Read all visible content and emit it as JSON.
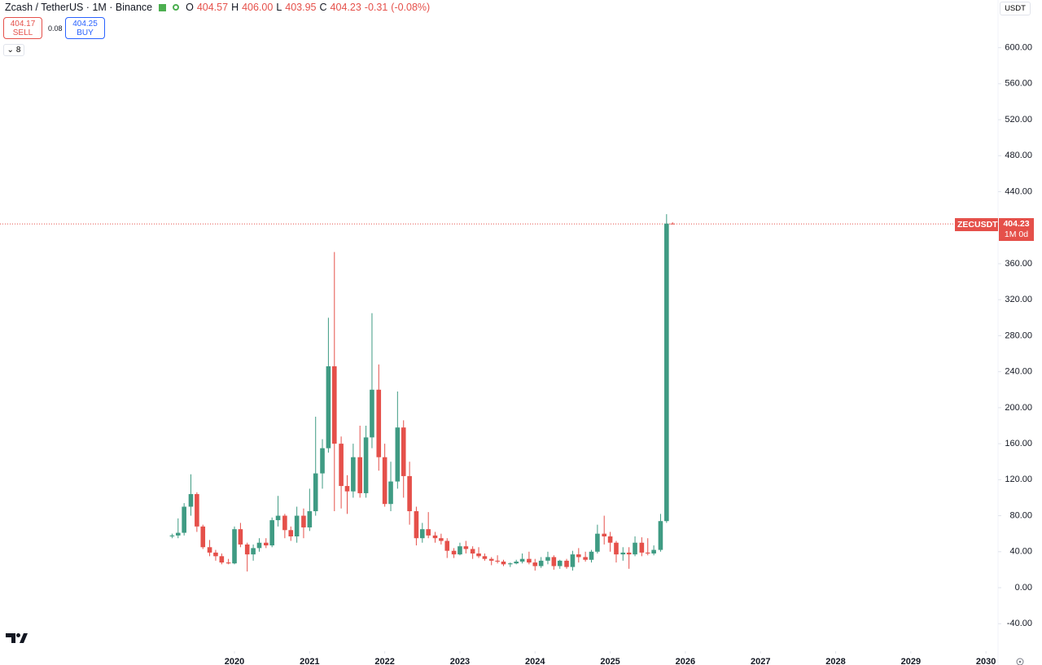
{
  "header": {
    "symbol": "Zcash / TetherUS · 1M · Binance",
    "o_label": "O",
    "open": "404.57",
    "h_label": "H",
    "high": "406.00",
    "l_label": "L",
    "low": "403.95",
    "c_label": "C",
    "close": "404.23",
    "change": "-0.31",
    "change_pct": "(-0.08%)"
  },
  "trade": {
    "sell_price": "404.17",
    "sell": "SELL",
    "spread": "0.08",
    "buy_price": "404.25",
    "buy": "BUY",
    "indicators": "8",
    "currency": "USDT"
  },
  "chart_data": {
    "type": "candlestick",
    "x": [
      2019.17,
      2019.25,
      2019.33,
      2019.42,
      2019.5,
      2019.58,
      2019.67,
      2019.75,
      2019.83,
      2019.92,
      2020,
      2020.08,
      2020.17,
      2020.25,
      2020.33,
      2020.42,
      2020.5,
      2020.58,
      2020.67,
      2020.75,
      2020.83,
      2020.92,
      2021,
      2021.08,
      2021.17,
      2021.25,
      2021.33,
      2021.42,
      2021.5,
      2021.58,
      2021.67,
      2021.75,
      2021.83,
      2021.92,
      2022,
      2022.08,
      2022.17,
      2022.25,
      2022.33,
      2022.42,
      2022.5,
      2022.58,
      2022.67,
      2022.75,
      2022.83,
      2022.92,
      2023,
      2023.08,
      2023.17,
      2023.25,
      2023.33,
      2023.42,
      2023.5,
      2023.58,
      2023.67,
      2023.75,
      2023.83,
      2023.92,
      2024,
      2024.08,
      2024.17,
      2024.25,
      2024.33,
      2024.42,
      2024.5,
      2024.58,
      2024.67,
      2024.75,
      2024.83,
      2024.92,
      2025,
      2025.08,
      2025.17,
      2025.25,
      2025.33,
      2025.42,
      2025.5,
      2025.58,
      2025.67,
      2025.75,
      2025.83
    ],
    "open": [
      57,
      58,
      61,
      90,
      104,
      68,
      45,
      39,
      35,
      28,
      27,
      65,
      48,
      37,
      44,
      50,
      47,
      75,
      80,
      64,
      57,
      80,
      67,
      85,
      127,
      155,
      246,
      160,
      113,
      107,
      145,
      105,
      167,
      220,
      145,
      93,
      118,
      178,
      124,
      85,
      55,
      65,
      58,
      55,
      52,
      41,
      37,
      46,
      43,
      38,
      35,
      32,
      30,
      29,
      26,
      27,
      29,
      32,
      28,
      24,
      30,
      34,
      24,
      30,
      23,
      37,
      34,
      31,
      40,
      60,
      57,
      50,
      37,
      39,
      37,
      50,
      39,
      38,
      42,
      74,
      404.57
    ],
    "high": [
      60,
      77,
      94,
      126,
      106,
      70,
      53,
      42,
      38,
      32,
      68,
      72,
      50,
      48,
      55,
      55,
      78,
      102,
      82,
      68,
      90,
      88,
      110,
      190,
      165,
      300,
      373,
      168,
      125,
      160,
      180,
      180,
      305,
      248,
      160,
      140,
      218,
      186,
      140,
      90,
      72,
      84,
      62,
      60,
      55,
      44,
      50,
      52,
      46,
      45,
      38,
      34,
      36,
      31,
      28,
      31,
      38,
      40,
      32,
      34,
      40,
      36,
      31,
      32,
      41,
      44,
      40,
      42,
      70,
      80,
      62,
      52,
      45,
      45,
      57,
      56,
      55,
      47,
      82,
      415,
      406
    ],
    "low": [
      55,
      55,
      58,
      80,
      62,
      43,
      35,
      30,
      26,
      26,
      26,
      45,
      18,
      30,
      40,
      44,
      45,
      68,
      55,
      52,
      50,
      55,
      63,
      80,
      110,
      150,
      85,
      88,
      82,
      100,
      100,
      100,
      155,
      130,
      90,
      85,
      110,
      100,
      70,
      47,
      50,
      55,
      50,
      48,
      33,
      33,
      36,
      38,
      32,
      33,
      30,
      25,
      27,
      24,
      23,
      26,
      27,
      26,
      19,
      22,
      26,
      20,
      21,
      21,
      19,
      28,
      29,
      28,
      38,
      48,
      40,
      28,
      30,
      21,
      35,
      35,
      36,
      36,
      40,
      72,
      403.95
    ],
    "close": [
      58,
      61,
      90,
      104,
      68,
      45,
      39,
      35,
      28,
      27,
      65,
      48,
      37,
      44,
      50,
      47,
      75,
      80,
      64,
      57,
      80,
      67,
      85,
      127,
      155,
      246,
      160,
      113,
      107,
      145,
      105,
      167,
      220,
      145,
      93,
      118,
      178,
      124,
      85,
      55,
      65,
      58,
      55,
      52,
      41,
      37,
      46,
      43,
      38,
      35,
      32,
      30,
      29,
      26,
      27,
      29,
      32,
      28,
      24,
      30,
      34,
      24,
      30,
      23,
      37,
      34,
      31,
      40,
      60,
      57,
      50,
      37,
      39,
      37,
      50,
      39,
      38,
      42,
      74,
      404.54,
      404.23
    ],
    "up_color": "#3f9b83",
    "down_color": "#e5504a",
    "xlim": [
      2016.88,
      2030.15
    ],
    "xticks": [
      2020,
      2021,
      2022,
      2023,
      2024,
      2025,
      2026,
      2027,
      2028,
      2029,
      2030
    ],
    "ylim": [
      -66,
      653
    ],
    "yticks": [
      {
        "value": -40,
        "label": "-40.00"
      },
      {
        "value": 0,
        "label": "0.00"
      },
      {
        "value": 40,
        "label": "40.00"
      },
      {
        "value": 80,
        "label": "80.00"
      },
      {
        "value": 120,
        "label": "120.00"
      },
      {
        "value": 160,
        "label": "160.00"
      },
      {
        "value": 200,
        "label": "200.00"
      },
      {
        "value": 240,
        "label": "240.00"
      },
      {
        "value": 280,
        "label": "280.00"
      },
      {
        "value": 320,
        "label": "320.00"
      },
      {
        "value": 360,
        "label": "360.00"
      },
      {
        "value": 440,
        "label": "440.00"
      },
      {
        "value": 480,
        "label": "480.00"
      },
      {
        "value": 520,
        "label": "520.00"
      },
      {
        "value": 560,
        "label": "560.00"
      },
      {
        "value": 600,
        "label": "600.00"
      }
    ],
    "grid": false,
    "price_tag": {
      "symbol": "ZECUSDT",
      "label": "404.23",
      "countdown": "1M 0d"
    }
  }
}
